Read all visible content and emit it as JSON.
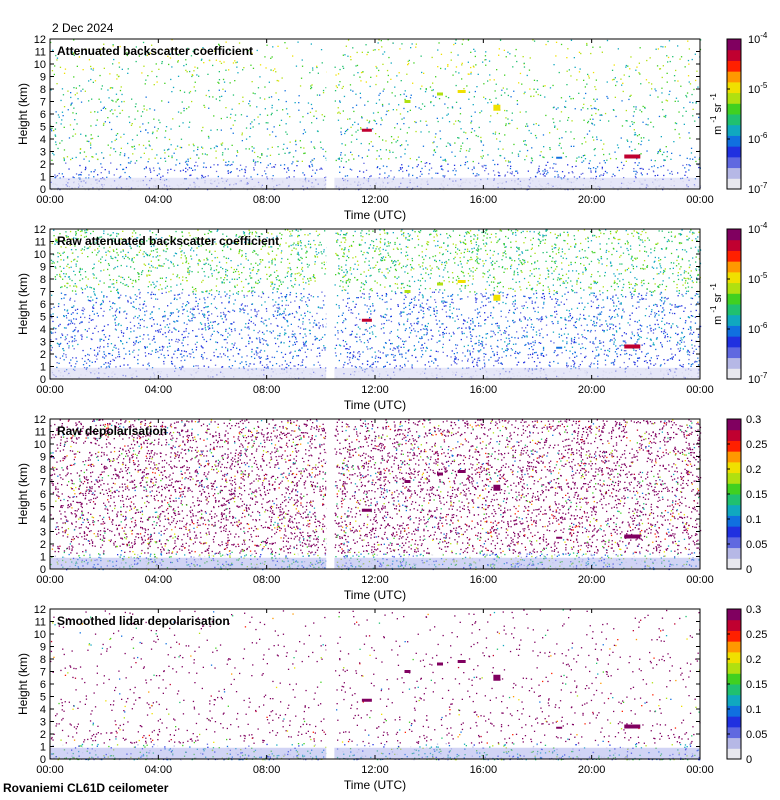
{
  "date": "2 Dec 2024",
  "station": "Rovaniemi CL61D ceilometer",
  "colors": {
    "colormap": [
      "#e8e8ee",
      "#b6b8e6",
      "#6068e0",
      "#2030e0",
      "#1070e0",
      "#10a8c0",
      "#20c070",
      "#40d020",
      "#b0e010",
      "#f0e000",
      "#ff9800",
      "#ff2000",
      "#c00030",
      "#800060"
    ]
  },
  "chart_data": [
    {
      "type": "heatmap",
      "title": "Attenuated backscatter coefficient",
      "xlabel": "Time (UTC)",
      "ylabel": "Height (km)",
      "x_ticks": [
        "00:00",
        "04:00",
        "08:00",
        "12:00",
        "16:00",
        "20:00",
        "00:00"
      ],
      "y_ticks": [
        "0",
        "1",
        "2",
        "3",
        "4",
        "5",
        "6",
        "7",
        "8",
        "9",
        "10",
        "11",
        "12"
      ],
      "xlim_hours": [
        0,
        24
      ],
      "ylim_km": [
        0,
        12
      ],
      "data_gap_hours": [
        10.2,
        10.5
      ],
      "colorbar": {
        "scale": "log",
        "ticks": [
          "10",
          "10",
          "10",
          "10"
        ],
        "exponents": [
          "-7",
          "-6",
          "-5",
          "-4"
        ],
        "unit": "m",
        "unit_exp1": "-1",
        "unit_sr": "sr",
        "unit_exp2": "-1"
      }
    },
    {
      "type": "heatmap",
      "title": "Raw attenuated backscatter coefficient",
      "xlabel": "Time (UTC)",
      "ylabel": "Height (km)",
      "x_ticks": [
        "00:00",
        "04:00",
        "08:00",
        "12:00",
        "16:00",
        "20:00",
        "00:00"
      ],
      "y_ticks": [
        "0",
        "1",
        "2",
        "3",
        "4",
        "5",
        "6",
        "7",
        "8",
        "9",
        "10",
        "11",
        "12"
      ],
      "xlim_hours": [
        0,
        24
      ],
      "ylim_km": [
        0,
        12
      ],
      "data_gap_hours": [
        10.2,
        10.5
      ],
      "colorbar": {
        "scale": "log",
        "ticks": [
          "10",
          "10",
          "10",
          "10"
        ],
        "exponents": [
          "-7",
          "-6",
          "-5",
          "-4"
        ],
        "unit": "m",
        "unit_exp1": "-1",
        "unit_sr": "sr",
        "unit_exp2": "-1"
      }
    },
    {
      "type": "heatmap",
      "title": "Raw depolarisation",
      "xlabel": "Time (UTC)",
      "ylabel": "Height (km)",
      "x_ticks": [
        "00:00",
        "04:00",
        "08:00",
        "12:00",
        "16:00",
        "20:00",
        "00:00"
      ],
      "y_ticks": [
        "0",
        "1",
        "2",
        "3",
        "4",
        "5",
        "6",
        "7",
        "8",
        "9",
        "10",
        "11",
        "12"
      ],
      "xlim_hours": [
        0,
        24
      ],
      "ylim_km": [
        0,
        12
      ],
      "data_gap_hours": [
        10.2,
        10.5
      ],
      "colorbar": {
        "scale": "linear",
        "ticks": [
          "0",
          "0.05",
          "0.1",
          "0.15",
          "0.2",
          "0.25",
          "0.3"
        ]
      }
    },
    {
      "type": "heatmap",
      "title": "Smoothed lidar depolarisation",
      "xlabel": "Time (UTC)",
      "ylabel": "Height (km)",
      "x_ticks": [
        "00:00",
        "04:00",
        "08:00",
        "12:00",
        "16:00",
        "20:00",
        "00:00"
      ],
      "y_ticks": [
        "0",
        "1",
        "2",
        "3",
        "4",
        "5",
        "6",
        "7",
        "8",
        "9",
        "10",
        "11",
        "12"
      ],
      "xlim_hours": [
        0,
        24
      ],
      "ylim_km": [
        0,
        12
      ],
      "data_gap_hours": [
        10.2,
        10.5
      ],
      "colorbar": {
        "scale": "linear",
        "ticks": [
          "0",
          "0.05",
          "0.1",
          "0.15",
          "0.2",
          "0.25",
          "0.3"
        ]
      }
    }
  ]
}
